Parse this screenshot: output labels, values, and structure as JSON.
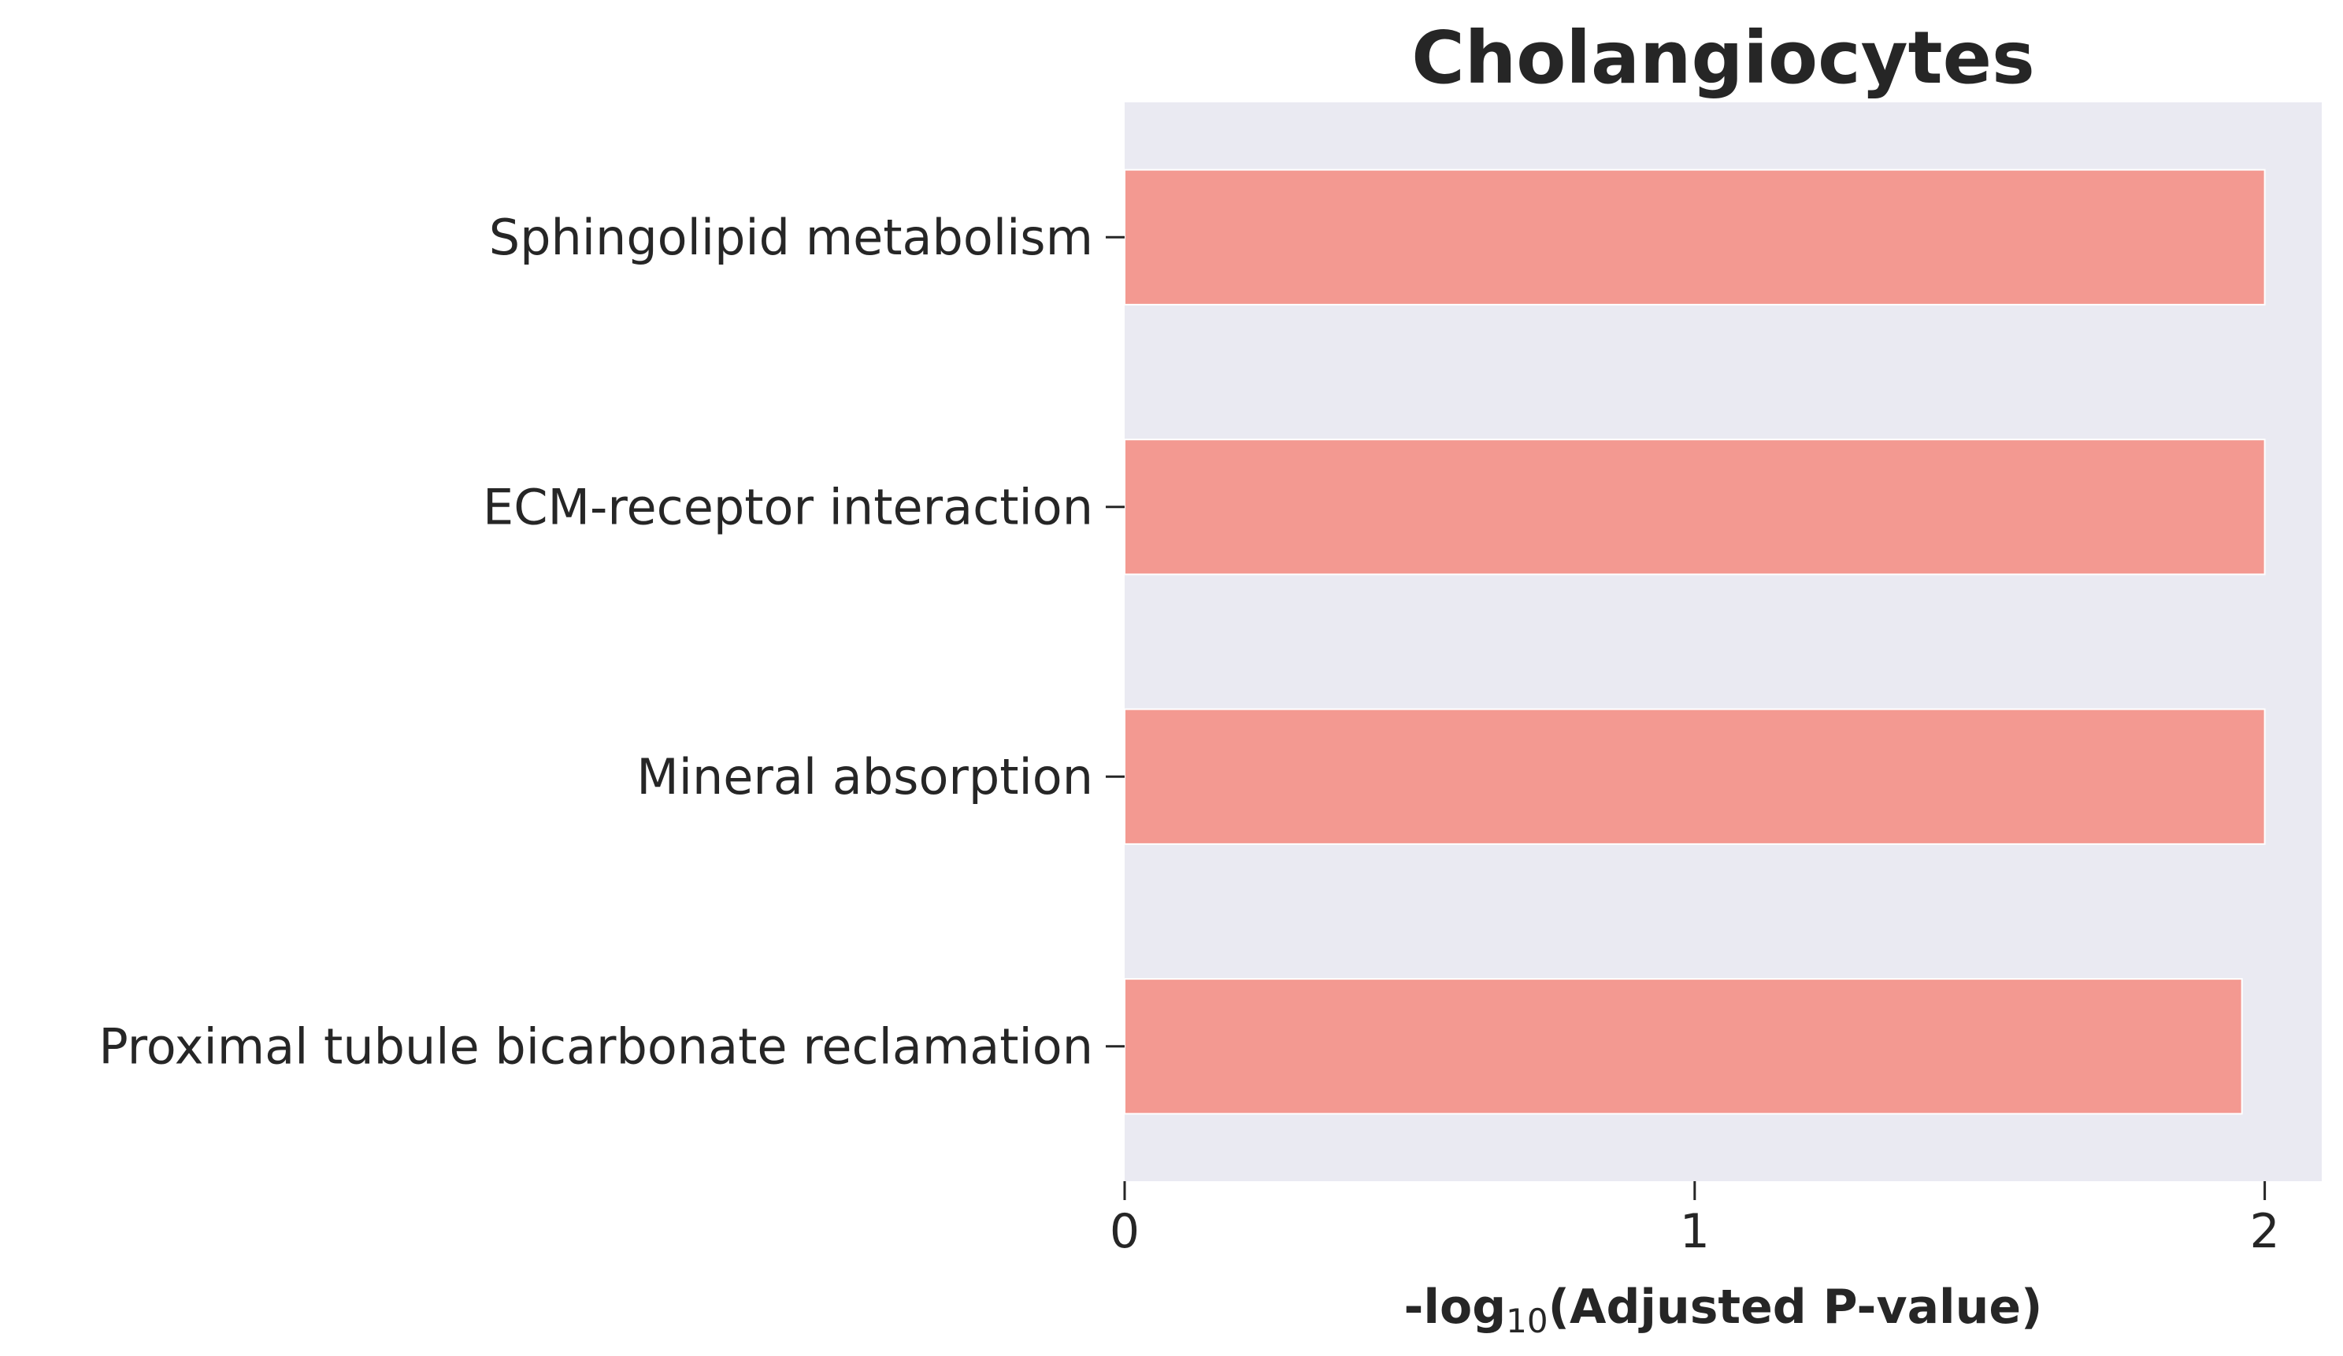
{
  "chart_data": {
    "type": "bar",
    "orientation": "horizontal",
    "title": "Cholangiocytes",
    "xlabel": {
      "prefix": "-log",
      "subscript": "10",
      "suffix": "(Adjusted P-value)"
    },
    "ylabel": "",
    "categories": [
      "Sphingolipid metabolism",
      "ECM-receptor interaction",
      "Mineral absorption",
      "Proximal tubule bicarbonate reclamation"
    ],
    "values": [
      2.0,
      2.0,
      2.0,
      1.96
    ],
    "xlim": [
      0,
      2.1
    ],
    "xticks": [
      0,
      1,
      2
    ],
    "xtick_labels": [
      "0",
      "1",
      "2"
    ],
    "grid": false,
    "legend": "none",
    "colors": {
      "bar": "#f39991",
      "plot_background": "#eaeaf2",
      "text": "#262626"
    }
  }
}
